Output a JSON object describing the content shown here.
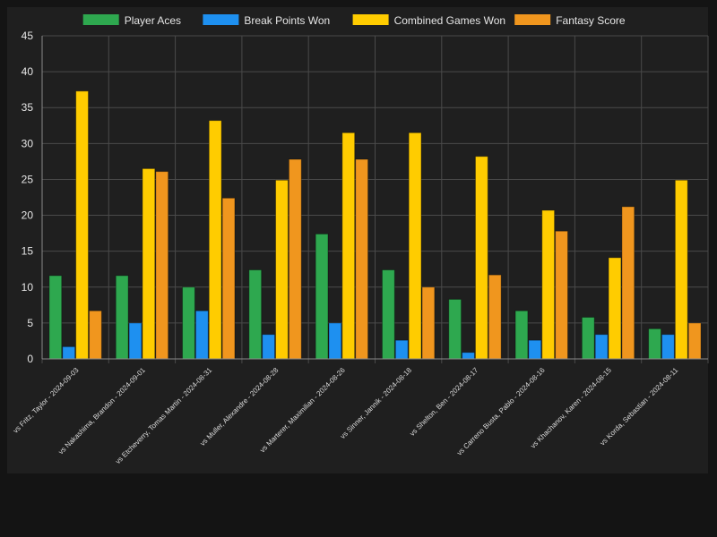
{
  "chart_data": {
    "type": "bar",
    "categories": [
      "vs Fritz, Taylor - 2024-09-03",
      "vs Nakashima, Brandon - 2024-09-01",
      "vs Etcheverry, Tomas Martin - 2024-08-31",
      "vs Muller, Alexandre - 2024-08-28",
      "vs Marterer, Maximilian - 2024-08-26",
      "vs Sinner, Jannik - 2024-08-18",
      "vs Shelton, Ben - 2024-08-17",
      "vs Carreno Busta, Pablo - 2024-08-16",
      "vs Khachanov, Karen - 2024-08-15",
      "vs Korda, Sebastian - 2024-08-11"
    ],
    "series": [
      {
        "name": "Player Aces",
        "color": "#2ea84f",
        "values": [
          11.6,
          11.6,
          10.0,
          12.4,
          17.4,
          12.4,
          8.3,
          6.7,
          5.8,
          4.2
        ]
      },
      {
        "name": "Break Points Won",
        "color": "#1e90f0",
        "values": [
          1.7,
          5.0,
          6.7,
          3.4,
          5.0,
          2.6,
          0.9,
          2.6,
          3.4,
          3.4
        ]
      },
      {
        "name": "Combined Games Won",
        "color": "#ffcc00",
        "values": [
          37.3,
          26.5,
          33.2,
          24.9,
          31.5,
          31.5,
          28.2,
          20.7,
          14.1,
          24.9
        ]
      },
      {
        "name": "Fantasy Score",
        "color": "#f0961e",
        "values": [
          6.7,
          26.1,
          22.4,
          27.8,
          27.8,
          10.0,
          11.7,
          17.8,
          21.2,
          5.0
        ]
      }
    ],
    "ylim": [
      0,
      45
    ],
    "yticks": [
      "0",
      "5",
      "10",
      "15",
      "20",
      "25",
      "30",
      "35",
      "40",
      "45"
    ],
    "grid": true,
    "legend_position": "top"
  }
}
